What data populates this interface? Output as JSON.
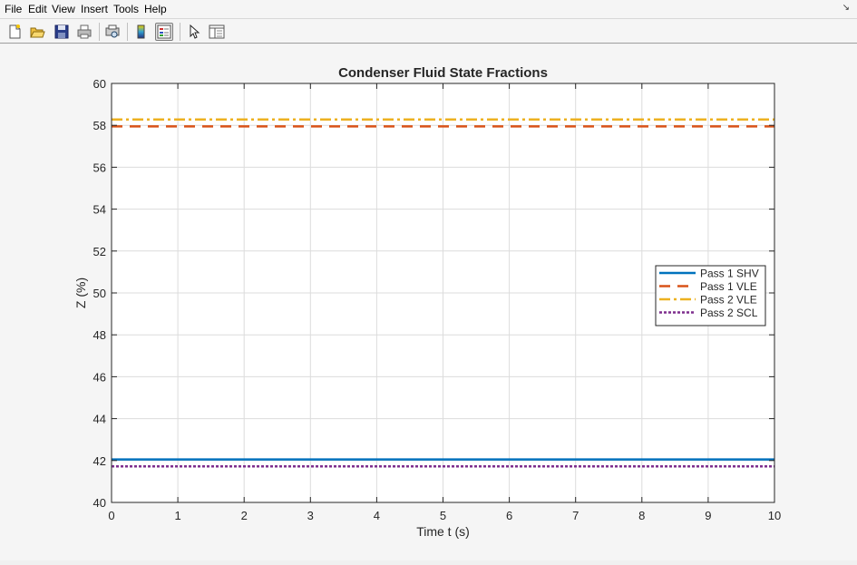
{
  "menu": {
    "items": [
      "File",
      "Edit",
      "View",
      "Insert",
      "Tools",
      "Help"
    ]
  },
  "toolbar": {
    "buttons": [
      {
        "name": "new-figure-icon"
      },
      {
        "name": "open-file-icon"
      },
      {
        "name": "save-icon"
      },
      {
        "name": "print-icon"
      },
      {
        "name": "print-preview-icon"
      },
      {
        "name": "insert-colorbar-icon"
      },
      {
        "name": "insert-legend-icon"
      },
      {
        "name": "edit-plot-arrow-icon"
      },
      {
        "name": "property-inspector-icon"
      }
    ]
  },
  "chart_data": {
    "type": "line",
    "title": "Condenser Fluid State Fractions",
    "xlabel": "Time t (s)",
    "ylabel": "Z (%)",
    "xlim": [
      0,
      10
    ],
    "ylim": [
      40,
      60
    ],
    "xticks": [
      0,
      1,
      2,
      3,
      4,
      5,
      6,
      7,
      8,
      9,
      10
    ],
    "yticks": [
      40,
      42,
      44,
      46,
      48,
      50,
      52,
      54,
      56,
      58,
      60
    ],
    "grid": true,
    "legend_position": "right",
    "x": [
      0,
      10
    ],
    "series": [
      {
        "name": "Pass 1 SHV",
        "values": [
          42.05,
          42.05
        ],
        "color": "#0072bd",
        "style": "solid"
      },
      {
        "name": "Pass 1 VLE",
        "values": [
          57.95,
          57.95
        ],
        "color": "#d95319",
        "style": "dashed"
      },
      {
        "name": "Pass 2 VLE",
        "values": [
          58.28,
          58.28
        ],
        "color": "#edb120",
        "style": "dashdot"
      },
      {
        "name": "Pass 2 SCL",
        "values": [
          41.72,
          41.72
        ],
        "color": "#7e2f8e",
        "style": "dotted"
      }
    ]
  }
}
